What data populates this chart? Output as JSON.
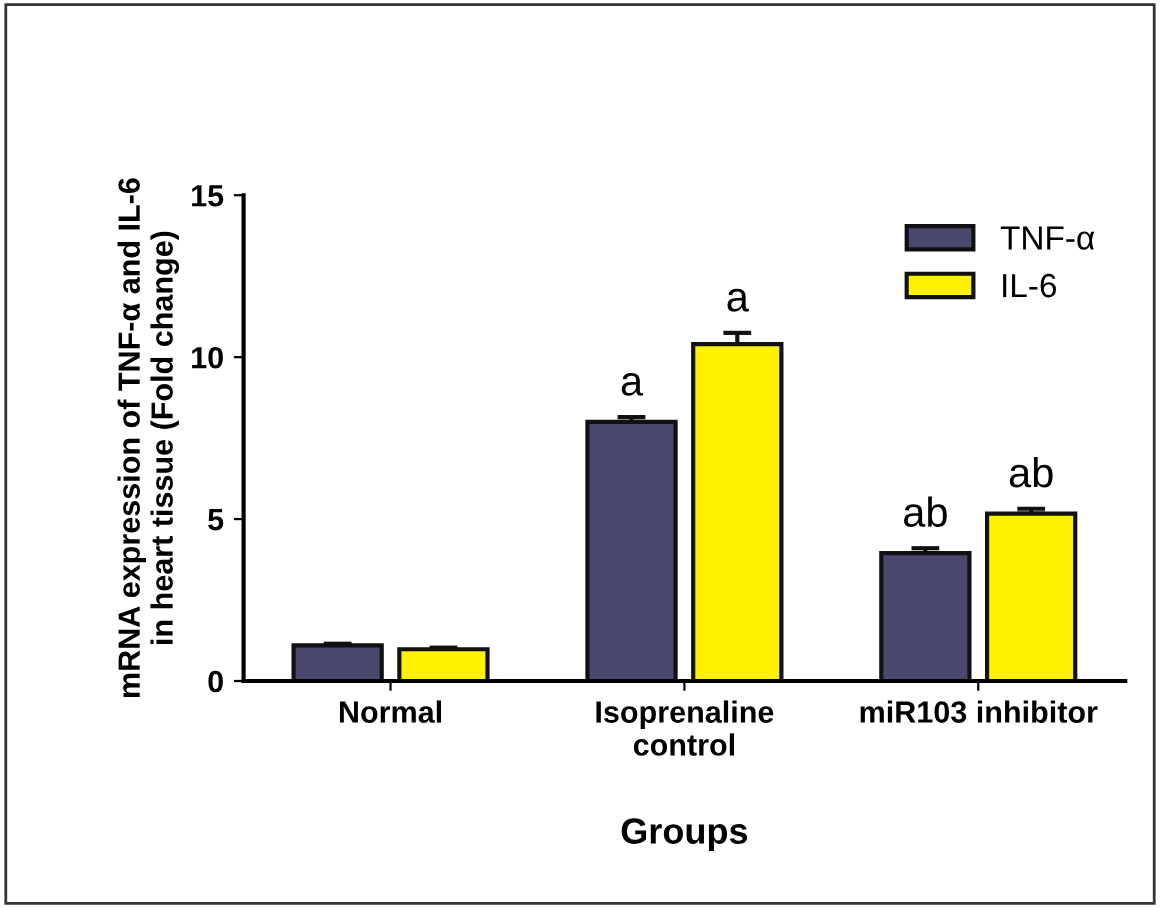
{
  "chart_data": {
    "type": "bar",
    "categories": [
      "Normal",
      "Isoprenaline\ncontrol",
      "miR103 inhibitor"
    ],
    "series": [
      {
        "name": "TNF-α",
        "color": "#4b4870",
        "values": [
          1.1,
          8.0,
          3.95
        ],
        "errors": [
          0.05,
          0.15,
          0.15
        ],
        "value_labels": [
          null,
          "a",
          "ab"
        ]
      },
      {
        "name": "IL-6",
        "color": "#fff200",
        "values": [
          0.98,
          10.4,
          5.17
        ],
        "errors": [
          0.05,
          0.35,
          0.15
        ],
        "value_labels": [
          null,
          "a",
          "ab"
        ]
      }
    ],
    "xlabel": "Groups",
    "ylabel": "mRNA expression of TNF-α and IL-6\nin heart tissue (Fold change)",
    "ylim": [
      0,
      15
    ],
    "yticks": [
      0,
      5,
      10,
      15
    ],
    "grid": false,
    "legend": "top right"
  }
}
